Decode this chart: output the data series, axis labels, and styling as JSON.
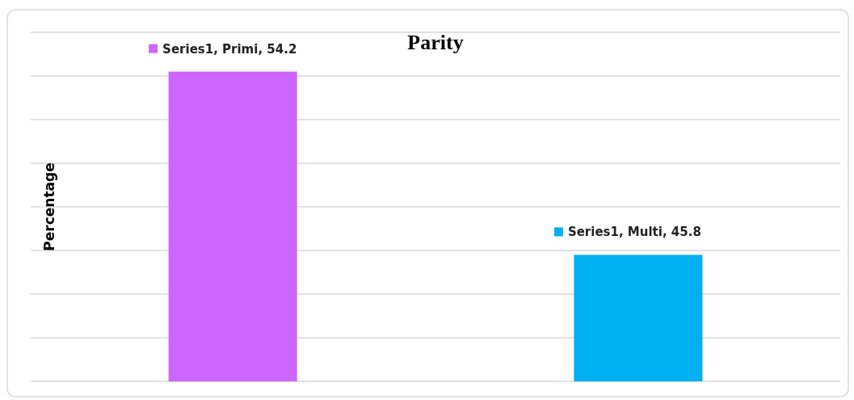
{
  "chart_data": {
    "type": "bar",
    "title": "Parity",
    "ylabel": "Percentage",
    "categories": [
      null,
      null
    ],
    "values": [
      54.2,
      45.8
    ],
    "colors": [
      "#cc66ff",
      "#00b0f0"
    ],
    "value_labels": [
      "Series1, Primi, 54.2",
      "Series1, Multi, 45.8"
    ],
    "ylim": [
      40,
      56
    ],
    "yticks": [
      {
        "value": 40,
        "label": null
      },
      {
        "value": 42,
        "label": null
      },
      {
        "value": 44,
        "label": null
      },
      {
        "value": 46,
        "label": null
      },
      {
        "value": 48,
        "label": null
      },
      {
        "value": 50,
        "label": null
      },
      {
        "value": 52,
        "label": null
      },
      {
        "value": 54,
        "label": null
      },
      {
        "value": 56,
        "label": null
      }
    ],
    "grid": "y"
  }
}
